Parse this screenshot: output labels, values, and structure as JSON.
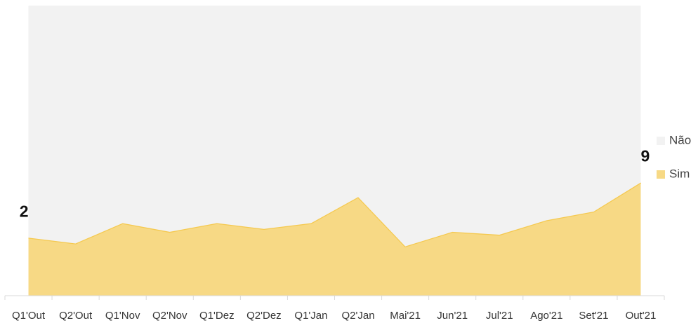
{
  "chart_data": {
    "type": "stacked_area",
    "categories": [
      "Q1'Out",
      "Q2'Out",
      "Q1'Nov",
      "Q2'Nov",
      "Q1'Dez",
      "Q2'Dez",
      "Q1'Jan",
      "Q2'Jan",
      "Mai'21",
      "Jun'21",
      "Jul'21",
      "Ago'21",
      "Set'21",
      "Out'21"
    ],
    "series": [
      {
        "name": "Sim",
        "color": "#f7d985",
        "values": [
          20,
          18,
          25,
          22,
          25,
          23,
          25,
          34,
          17,
          22,
          21,
          26,
          29,
          39
        ],
        "show_labels": true
      },
      {
        "name": "Não",
        "color": "#f2f2f2",
        "values": [
          80,
          82,
          75,
          78,
          75,
          77,
          75,
          66,
          83,
          78,
          79,
          74,
          71,
          61
        ],
        "show_labels": false
      }
    ],
    "ylim": [
      0,
      100
    ],
    "legend": "right"
  }
}
